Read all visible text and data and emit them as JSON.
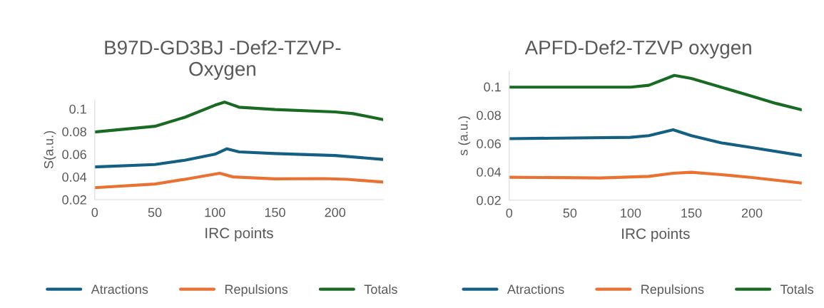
{
  "chart_data": [
    {
      "type": "line",
      "title": "B97D-GD3BJ -Def2-TZVP-\nOxygen",
      "xlabel": "IRC points",
      "ylabel": "S(a.u.)",
      "xlim": [
        0,
        240
      ],
      "ylim": [
        0.02,
        0.108
      ],
      "xticks": [
        0,
        50,
        100,
        150,
        200
      ],
      "yticks": [
        0.02,
        0.04,
        0.06,
        0.08,
        0.1
      ],
      "grid": false,
      "legend": "bottom",
      "marker": "none",
      "line_style": "solid",
      "series": [
        {
          "name": "Atractions",
          "color": "#156082",
          "x": [
            0,
            50,
            75,
            100,
            110,
            120,
            150,
            200,
            240
          ],
          "values": [
            0.0488,
            0.0509,
            0.0547,
            0.06,
            0.0648,
            0.0621,
            0.0606,
            0.0589,
            0.0554
          ]
        },
        {
          "name": "Repulsions",
          "color": "#e97132",
          "x": [
            0,
            50,
            75,
            104,
            115,
            150,
            190,
            210,
            240
          ],
          "values": [
            0.0305,
            0.0337,
            0.0379,
            0.0432,
            0.04,
            0.0383,
            0.0385,
            0.0379,
            0.0354
          ]
        },
        {
          "name": "Totals",
          "color": "#196b24",
          "x": [
            0,
            50,
            75,
            100,
            108,
            120,
            150,
            200,
            215,
            240
          ],
          "values": [
            0.0796,
            0.0846,
            0.0926,
            0.1032,
            0.106,
            0.1015,
            0.0994,
            0.0973,
            0.0958,
            0.0905
          ]
        }
      ]
    },
    {
      "type": "line",
      "title": "APFD-Def2-TZVP oxygen",
      "xlabel": "IRC points",
      "ylabel": "s (a.u.)",
      "xlim": [
        0,
        241
      ],
      "ylim": [
        0.02,
        0.111
      ],
      "xticks": [
        0,
        50,
        100,
        150,
        200
      ],
      "yticks": [
        0.02,
        0.04,
        0.06,
        0.08,
        0.1
      ],
      "grid": false,
      "legend": "bottom",
      "marker": "none",
      "line_style": "solid",
      "series": [
        {
          "name": "Atractions",
          "color": "#156082",
          "x": [
            0,
            100,
            115,
            135,
            150,
            175,
            200,
            241
          ],
          "values": [
            0.0634,
            0.0643,
            0.0655,
            0.0697,
            0.0655,
            0.0604,
            0.0571,
            0.0515
          ]
        },
        {
          "name": "Repulsions",
          "color": "#e97132",
          "x": [
            0,
            75,
            115,
            135,
            150,
            175,
            200,
            241
          ],
          "values": [
            0.0362,
            0.0357,
            0.0368,
            0.039,
            0.0397,
            0.038,
            0.036,
            0.0321
          ]
        },
        {
          "name": "Totals",
          "color": "#196b24",
          "x": [
            0,
            100,
            115,
            136,
            150,
            200,
            220,
            241
          ],
          "values": [
            0.0997,
            0.0997,
            0.101,
            0.108,
            0.1059,
            0.0933,
            0.0882,
            0.0837
          ]
        }
      ]
    }
  ]
}
